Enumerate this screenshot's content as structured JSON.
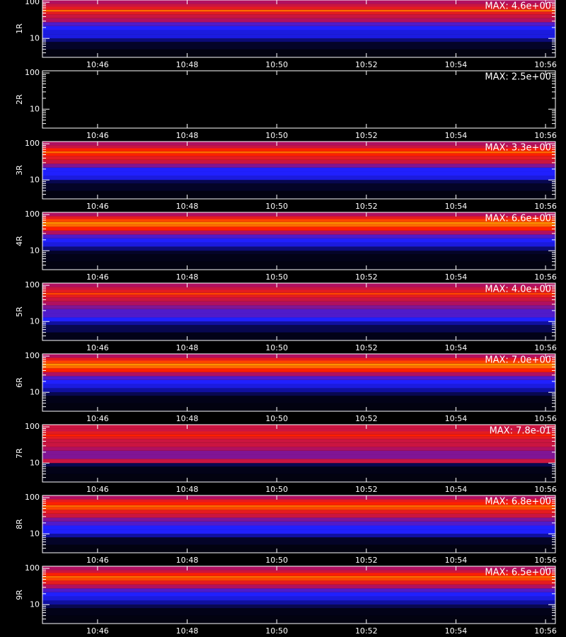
{
  "chart_data": [
    {
      "type": "heatmap",
      "ylabel": "1R",
      "annotation": "MAX: 4.6e+00",
      "log_y": true,
      "xlim": [
        644.77,
        656.22
      ],
      "xticks": [
        {
          "value": 646,
          "label": "10:46"
        },
        {
          "value": 648,
          "label": "10:48"
        },
        {
          "value": 650,
          "label": "10:50"
        },
        {
          "value": 652,
          "label": "10:52"
        },
        {
          "value": 654,
          "label": "10:54"
        },
        {
          "value": 656,
          "label": "10:56"
        }
      ],
      "ylim": [
        3,
        115
      ],
      "yticks": [
        10,
        100
      ],
      "yminor": [
        3,
        4,
        5,
        6,
        7,
        8,
        9,
        20,
        30,
        40,
        50,
        60,
        70,
        80,
        90
      ],
      "ybins": [
        3,
        5,
        8,
        10,
        13,
        17,
        22,
        28,
        36,
        46,
        55,
        62,
        75,
        90,
        115
      ],
      "values": [
        0.02,
        0.05,
        0.15,
        0.3,
        0.3,
        0.35,
        0.4,
        0.5,
        0.55,
        0.6,
        0.75,
        0.6,
        0.55,
        0.5
      ],
      "colormap": [
        [
          0,
          "#000000"
        ],
        [
          0.2,
          "#1010a0"
        ],
        [
          0.35,
          "#2020ff"
        ],
        [
          0.5,
          "#b01060"
        ],
        [
          0.65,
          "#ff2000"
        ],
        [
          0.8,
          "#ff9000"
        ],
        [
          1,
          "#ffff80"
        ]
      ]
    },
    {
      "type": "heatmap",
      "ylabel": "2R",
      "annotation": "MAX: 2.5e+00",
      "log_y": true,
      "xlim": [
        644.77,
        656.22
      ],
      "xticks": [
        {
          "value": 646,
          "label": "10:46"
        },
        {
          "value": 648,
          "label": "10:48"
        },
        {
          "value": 650,
          "label": "10:50"
        },
        {
          "value": 652,
          "label": "10:52"
        },
        {
          "value": 654,
          "label": "10:54"
        },
        {
          "value": 656,
          "label": "10:56"
        }
      ],
      "ylim": [
        3,
        115
      ],
      "yticks": [
        10,
        100
      ],
      "yminor": [
        3,
        4,
        5,
        6,
        7,
        8,
        9,
        20,
        30,
        40,
        50,
        60,
        70,
        80,
        90
      ],
      "ybins": [
        3,
        5,
        8,
        10,
        13,
        17,
        22,
        28,
        36,
        46,
        55,
        62,
        75,
        90,
        115
      ],
      "values": [
        0,
        0,
        0,
        0,
        0,
        0,
        0,
        0,
        0,
        0,
        0,
        0,
        0,
        0
      ],
      "colormap": [
        [
          0,
          "#000000"
        ],
        [
          0.2,
          "#1010a0"
        ],
        [
          0.35,
          "#2020ff"
        ],
        [
          0.5,
          "#b01060"
        ],
        [
          0.65,
          "#ff2000"
        ],
        [
          0.8,
          "#ff9000"
        ],
        [
          1,
          "#ffff80"
        ]
      ]
    },
    {
      "type": "heatmap",
      "ylabel": "3R",
      "annotation": "MAX: 3.3e+00",
      "log_y": true,
      "xlim": [
        644.77,
        656.22
      ],
      "xticks": [
        {
          "value": 646,
          "label": "10:46"
        },
        {
          "value": 648,
          "label": "10:48"
        },
        {
          "value": 650,
          "label": "10:50"
        },
        {
          "value": 652,
          "label": "10:52"
        },
        {
          "value": 654,
          "label": "10:54"
        },
        {
          "value": 656,
          "label": "10:56"
        }
      ],
      "ylim": [
        3,
        115
      ],
      "yticks": [
        10,
        100
      ],
      "yminor": [
        3,
        4,
        5,
        6,
        7,
        8,
        9,
        20,
        30,
        40,
        50,
        60,
        70,
        80,
        90
      ],
      "ybins": [
        3,
        5,
        8,
        10,
        13,
        17,
        22,
        28,
        36,
        46,
        55,
        62,
        75,
        90,
        115
      ],
      "values": [
        0.02,
        0.05,
        0.1,
        0.3,
        0.35,
        0.35,
        0.45,
        0.55,
        0.6,
        0.65,
        0.75,
        0.65,
        0.55,
        0.5
      ],
      "colormap": [
        [
          0,
          "#000000"
        ],
        [
          0.2,
          "#1010a0"
        ],
        [
          0.35,
          "#2020ff"
        ],
        [
          0.5,
          "#b01060"
        ],
        [
          0.65,
          "#ff2000"
        ],
        [
          0.8,
          "#ff9000"
        ],
        [
          1,
          "#ffff80"
        ]
      ]
    },
    {
      "type": "heatmap",
      "ylabel": "4R",
      "annotation": "MAX: 6.6e+00",
      "log_y": true,
      "xlim": [
        644.77,
        656.22
      ],
      "xticks": [
        {
          "value": 646,
          "label": "10:46"
        },
        {
          "value": 648,
          "label": "10:48"
        },
        {
          "value": 650,
          "label": "10:50"
        },
        {
          "value": 652,
          "label": "10:52"
        },
        {
          "value": 654,
          "label": "10:54"
        },
        {
          "value": 656,
          "label": "10:56"
        }
      ],
      "ylim": [
        3,
        115
      ],
      "yticks": [
        10,
        100
      ],
      "yminor": [
        3,
        4,
        5,
        6,
        7,
        8,
        9,
        20,
        30,
        40,
        50,
        60,
        70,
        80,
        90
      ],
      "ybins": [
        3,
        5,
        8,
        10,
        13,
        17,
        22,
        28,
        36,
        46,
        55,
        62,
        75,
        90,
        115
      ],
      "values": [
        0.02,
        0.03,
        0.05,
        0.15,
        0.3,
        0.35,
        0.4,
        0.5,
        0.65,
        0.75,
        0.8,
        0.7,
        0.6,
        0.5
      ],
      "colormap": [
        [
          0,
          "#000000"
        ],
        [
          0.2,
          "#1010a0"
        ],
        [
          0.35,
          "#2020ff"
        ],
        [
          0.5,
          "#b01060"
        ],
        [
          0.65,
          "#ff2000"
        ],
        [
          0.8,
          "#ff9000"
        ],
        [
          1,
          "#ffff80"
        ]
      ]
    },
    {
      "type": "heatmap",
      "ylabel": "5R",
      "annotation": "MAX: 4.0e+00",
      "log_y": true,
      "xlim": [
        644.77,
        656.22
      ],
      "xticks": [
        {
          "value": 646,
          "label": "10:46"
        },
        {
          "value": 648,
          "label": "10:48"
        },
        {
          "value": 650,
          "label": "10:50"
        },
        {
          "value": 652,
          "label": "10:52"
        },
        {
          "value": 654,
          "label": "10:54"
        },
        {
          "value": 656,
          "label": "10:56"
        }
      ],
      "ylim": [
        3,
        115
      ],
      "yticks": [
        10,
        100
      ],
      "yminor": [
        3,
        4,
        5,
        6,
        7,
        8,
        9,
        20,
        30,
        40,
        50,
        60,
        70,
        80,
        90
      ],
      "ybins": [
        3,
        5,
        8,
        10,
        13,
        17,
        22,
        28,
        36,
        46,
        55,
        62,
        75,
        90,
        115
      ],
      "values": [
        0.03,
        0.1,
        0.2,
        0.35,
        0.4,
        0.4,
        0.45,
        0.5,
        0.55,
        0.6,
        0.7,
        0.6,
        0.55,
        0.5
      ],
      "colormap": [
        [
          0,
          "#000000"
        ],
        [
          0.2,
          "#1010a0"
        ],
        [
          0.35,
          "#2020ff"
        ],
        [
          0.5,
          "#b01060"
        ],
        [
          0.65,
          "#ff2000"
        ],
        [
          0.8,
          "#ff9000"
        ],
        [
          1,
          "#ffff80"
        ]
      ]
    },
    {
      "type": "heatmap",
      "ylabel": "6R",
      "annotation": "MAX: 7.0e+00",
      "log_y": true,
      "xlim": [
        644.77,
        656.22
      ],
      "xticks": [
        {
          "value": 646,
          "label": "10:46"
        },
        {
          "value": 648,
          "label": "10:48"
        },
        {
          "value": 650,
          "label": "10:50"
        },
        {
          "value": 652,
          "label": "10:52"
        },
        {
          "value": 654,
          "label": "10:54"
        },
        {
          "value": 656,
          "label": "10:56"
        }
      ],
      "ylim": [
        3,
        115
      ],
      "yticks": [
        10,
        100
      ],
      "yminor": [
        3,
        4,
        5,
        6,
        7,
        8,
        9,
        20,
        30,
        40,
        50,
        60,
        70,
        80,
        90
      ],
      "ybins": [
        3,
        5,
        8,
        10,
        13,
        17,
        22,
        28,
        36,
        46,
        55,
        62,
        75,
        90,
        115
      ],
      "values": [
        0.02,
        0.03,
        0.1,
        0.2,
        0.3,
        0.35,
        0.4,
        0.5,
        0.65,
        0.75,
        0.8,
        0.7,
        0.6,
        0.5
      ],
      "colormap": [
        [
          0,
          "#000000"
        ],
        [
          0.2,
          "#1010a0"
        ],
        [
          0.35,
          "#2020ff"
        ],
        [
          0.5,
          "#b01060"
        ],
        [
          0.65,
          "#ff2000"
        ],
        [
          0.8,
          "#ff9000"
        ],
        [
          1,
          "#ffff80"
        ]
      ]
    },
    {
      "type": "heatmap",
      "ylabel": "7R",
      "annotation": "MAX: 7.8e-01",
      "log_y": true,
      "xlim": [
        644.77,
        656.22
      ],
      "xticks": [
        {
          "value": 646,
          "label": "10:46"
        },
        {
          "value": 648,
          "label": "10:48"
        },
        {
          "value": 650,
          "label": "10:50"
        },
        {
          "value": 652,
          "label": "10:52"
        },
        {
          "value": 654,
          "label": "10:54"
        },
        {
          "value": 656,
          "label": "10:56"
        }
      ],
      "ylim": [
        3,
        115
      ],
      "yticks": [
        10,
        100
      ],
      "yminor": [
        3,
        4,
        5,
        6,
        7,
        8,
        9,
        20,
        30,
        40,
        50,
        60,
        70,
        80,
        90
      ],
      "ybins": [
        3,
        5,
        8,
        10,
        13,
        17,
        22,
        28,
        36,
        46,
        55,
        62,
        75,
        90,
        115
      ],
      "values": [
        0.02,
        0.03,
        0.1,
        0.55,
        0.45,
        0.45,
        0.5,
        0.55,
        0.55,
        0.6,
        0.65,
        0.6,
        0.55,
        0.55
      ],
      "colormap": [
        [
          0,
          "#000000"
        ],
        [
          0.2,
          "#1010a0"
        ],
        [
          0.35,
          "#2020ff"
        ],
        [
          0.5,
          "#b01060"
        ],
        [
          0.65,
          "#ff2000"
        ],
        [
          0.8,
          "#ff9000"
        ],
        [
          1,
          "#ffff80"
        ]
      ]
    },
    {
      "type": "heatmap",
      "ylabel": "8R",
      "annotation": "MAX: 6.8e+00",
      "log_y": true,
      "xlim": [
        644.77,
        656.22
      ],
      "xticks": [
        {
          "value": 646,
          "label": "10:46"
        },
        {
          "value": 648,
          "label": "10:48"
        },
        {
          "value": 650,
          "label": "10:50"
        },
        {
          "value": 652,
          "label": "10:52"
        },
        {
          "value": 654,
          "label": "10:54"
        },
        {
          "value": 656,
          "label": "10:56"
        }
      ],
      "ylim": [
        3,
        115
      ],
      "yticks": [
        10,
        100
      ],
      "yminor": [
        3,
        4,
        5,
        6,
        7,
        8,
        9,
        20,
        30,
        40,
        50,
        60,
        70,
        80,
        90
      ],
      "ybins": [
        3,
        5,
        8,
        10,
        13,
        17,
        22,
        28,
        36,
        46,
        55,
        62,
        75,
        90,
        115
      ],
      "values": [
        0.02,
        0.05,
        0.2,
        0.35,
        0.35,
        0.4,
        0.45,
        0.55,
        0.6,
        0.7,
        0.75,
        0.65,
        0.6,
        0.5
      ],
      "colormap": [
        [
          0,
          "#000000"
        ],
        [
          0.2,
          "#1010a0"
        ],
        [
          0.35,
          "#2020ff"
        ],
        [
          0.5,
          "#b01060"
        ],
        [
          0.65,
          "#ff2000"
        ],
        [
          0.8,
          "#ff9000"
        ],
        [
          1,
          "#ffff80"
        ]
      ]
    },
    {
      "type": "heatmap",
      "ylabel": "9R",
      "annotation": "MAX: 6.5e+00",
      "log_y": true,
      "xlim": [
        644.77,
        656.22
      ],
      "xticks": [
        {
          "value": 646,
          "label": "10:46"
        },
        {
          "value": 648,
          "label": "10:48"
        },
        {
          "value": 650,
          "label": "10:50"
        },
        {
          "value": 652,
          "label": "10:52"
        },
        {
          "value": 654,
          "label": "10:54"
        },
        {
          "value": 656,
          "label": "10:56"
        }
      ],
      "ylim": [
        3,
        115
      ],
      "yticks": [
        10,
        100
      ],
      "yminor": [
        3,
        4,
        5,
        6,
        7,
        8,
        9,
        20,
        30,
        40,
        50,
        60,
        70,
        80,
        90
      ],
      "ybins": [
        3,
        5,
        8,
        10,
        13,
        17,
        22,
        28,
        36,
        46,
        55,
        62,
        75,
        90,
        115
      ],
      "values": [
        0.02,
        0.03,
        0.1,
        0.2,
        0.3,
        0.35,
        0.4,
        0.5,
        0.6,
        0.7,
        0.75,
        0.65,
        0.55,
        0.5
      ],
      "colormap": [
        [
          0,
          "#000000"
        ],
        [
          0.2,
          "#1010a0"
        ],
        [
          0.35,
          "#2020ff"
        ],
        [
          0.5,
          "#b01060"
        ],
        [
          0.65,
          "#ff2000"
        ],
        [
          0.8,
          "#ff9000"
        ],
        [
          1,
          "#ffff80"
        ]
      ]
    }
  ]
}
